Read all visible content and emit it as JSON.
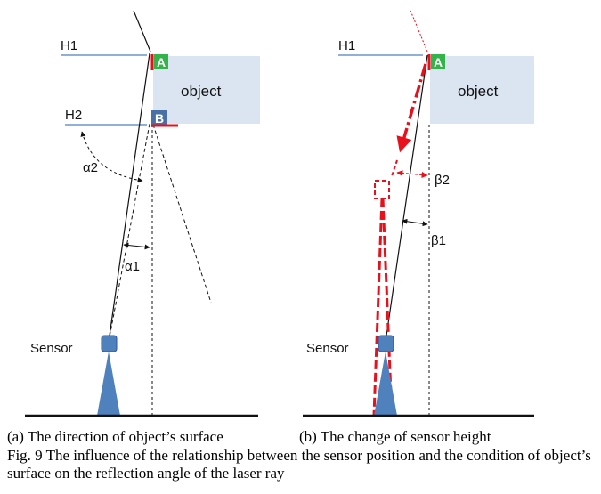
{
  "panel_a": {
    "h1": "H1",
    "h2": "H2",
    "object": "object",
    "point_a": "A",
    "point_b": "B",
    "alpha2": "α2",
    "alpha1": "α1",
    "sensor": "Sensor",
    "caption": "(a)  The direction of object’s surface"
  },
  "panel_b": {
    "h1": "H1",
    "object": "object",
    "point_a": "A",
    "beta2": "β2",
    "beta1": "β1",
    "sensor": "Sensor",
    "caption": "(b) The change of sensor height"
  },
  "figure_caption": "Fig. 9 The influence of the relationship between the sensor position and the condition of object’s surface on the reflection angle of the laser ray",
  "colors": {
    "object_fill": "#dbe5f1",
    "sensor_blue": "#4f81bd",
    "badge_green": "#33b34a",
    "badge_blue": "#4a6fa5",
    "red": "#e8101a"
  }
}
